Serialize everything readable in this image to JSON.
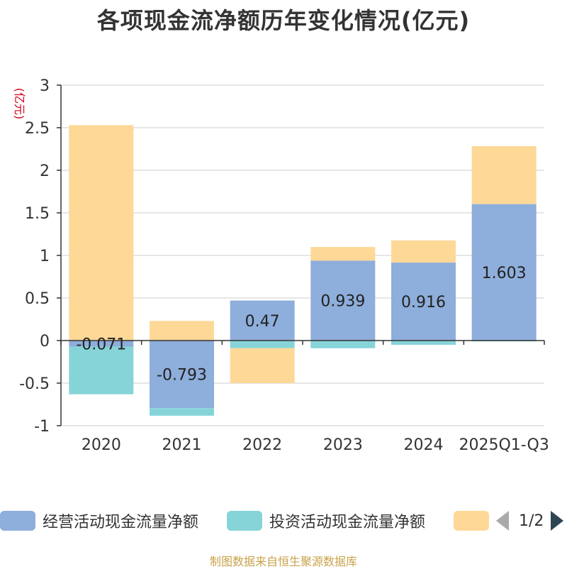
{
  "chart_data": {
    "type": "bar",
    "stacked": true,
    "title": "各项现金流净额历年变化情况(亿元)",
    "ylabel": "(亿元)",
    "ylim": [
      -1,
      3
    ],
    "yticks": [
      -1,
      -0.5,
      0,
      0.5,
      1,
      1.5,
      2,
      2.5,
      3
    ],
    "ytick_labels": [
      "-1",
      "-0.5",
      "0",
      "0.5",
      "1",
      "1.5",
      "2",
      "2.5",
      "3"
    ],
    "grid": true,
    "legend_position": "bottom",
    "categories": [
      "2020",
      "2021",
      "2022",
      "2023",
      "2024",
      "2025Q1-Q3"
    ],
    "series": [
      {
        "name": "经营活动现金流量净额",
        "color": "#8eaedb",
        "values": [
          -0.071,
          -0.793,
          0.47,
          0.939,
          0.916,
          1.603
        ],
        "labels": [
          "-0.071",
          "-0.793",
          "0.47",
          "0.939",
          "0.916",
          "1.603"
        ]
      },
      {
        "name": "投资活动现金流量净额",
        "color": "#87d4d8",
        "values": [
          -0.56,
          -0.09,
          -0.09,
          -0.09,
          -0.05,
          -0.01
        ]
      },
      {
        "name": "",
        "color": "#fed897",
        "values": [
          2.53,
          0.23,
          -0.41,
          0.16,
          0.26,
          0.68
        ]
      }
    ]
  },
  "legend": {
    "pager_text": "1/2"
  },
  "source": "制图数据来自恒生聚源数据库"
}
